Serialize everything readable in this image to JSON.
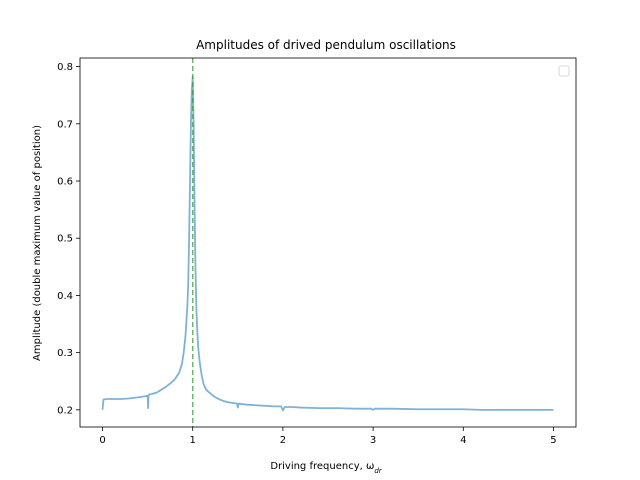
{
  "chart_data": {
    "type": "line",
    "title": "Amplitudes of drived pendulum oscillations",
    "xlabel_prefix": "Driving frequency, ω",
    "xlabel_subscript": "dr",
    "ylabel": "Amplitude (double maximum value of position)",
    "xlim": [
      -0.25,
      5.25
    ],
    "ylim": [
      0.17,
      0.815
    ],
    "xticks": [
      0,
      1,
      2,
      3,
      4,
      5
    ],
    "xtick_labels": [
      "0",
      "1",
      "2",
      "3",
      "4",
      "5"
    ],
    "yticks": [
      0.2,
      0.3,
      0.4,
      0.5,
      0.6,
      0.7,
      0.8
    ],
    "ytick_labels": [
      "0.2",
      "0.3",
      "0.4",
      "0.5",
      "0.6",
      "0.7",
      "0.8"
    ],
    "grid": false,
    "legend": "top-right, empty",
    "resonance_line": {
      "x": 1.0,
      "color": "#2ca02c",
      "style": "dashed"
    },
    "series": [
      {
        "color": "#7fb2d5",
        "x": [
          0.0,
          0.01,
          0.05,
          0.1,
          0.2,
          0.3,
          0.4,
          0.48,
          0.5,
          0.505,
          0.51,
          0.515,
          0.52,
          0.55,
          0.6,
          0.65,
          0.7,
          0.75,
          0.8,
          0.85,
          0.88,
          0.9,
          0.92,
          0.94,
          0.95,
          0.96,
          0.97,
          0.98,
          0.99,
          1.0,
          1.01,
          1.02,
          1.03,
          1.04,
          1.05,
          1.06,
          1.08,
          1.1,
          1.12,
          1.15,
          1.2,
          1.25,
          1.3,
          1.35,
          1.4,
          1.45,
          1.49,
          1.5,
          1.51,
          1.55,
          1.6,
          1.7,
          1.8,
          1.9,
          1.98,
          2.0,
          2.02,
          2.05,
          2.1,
          2.2,
          2.4,
          2.6,
          2.8,
          2.98,
          3.0,
          3.02,
          3.2,
          3.5,
          3.8,
          4.0,
          4.2,
          4.5,
          4.8,
          5.0
        ],
        "values": [
          0.2,
          0.218,
          0.219,
          0.219,
          0.219,
          0.22,
          0.222,
          0.224,
          0.225,
          0.203,
          0.224,
          0.226,
          0.227,
          0.228,
          0.23,
          0.235,
          0.24,
          0.246,
          0.253,
          0.265,
          0.28,
          0.3,
          0.33,
          0.38,
          0.42,
          0.5,
          0.6,
          0.7,
          0.76,
          0.782,
          0.7,
          0.56,
          0.45,
          0.38,
          0.34,
          0.31,
          0.28,
          0.26,
          0.245,
          0.235,
          0.228,
          0.222,
          0.218,
          0.215,
          0.213,
          0.212,
          0.211,
          0.204,
          0.211,
          0.21,
          0.209,
          0.208,
          0.207,
          0.206,
          0.206,
          0.199,
          0.205,
          0.205,
          0.205,
          0.204,
          0.203,
          0.203,
          0.202,
          0.202,
          0.2,
          0.202,
          0.202,
          0.201,
          0.201,
          0.201,
          0.2,
          0.2,
          0.2,
          0.2
        ]
      }
    ]
  }
}
